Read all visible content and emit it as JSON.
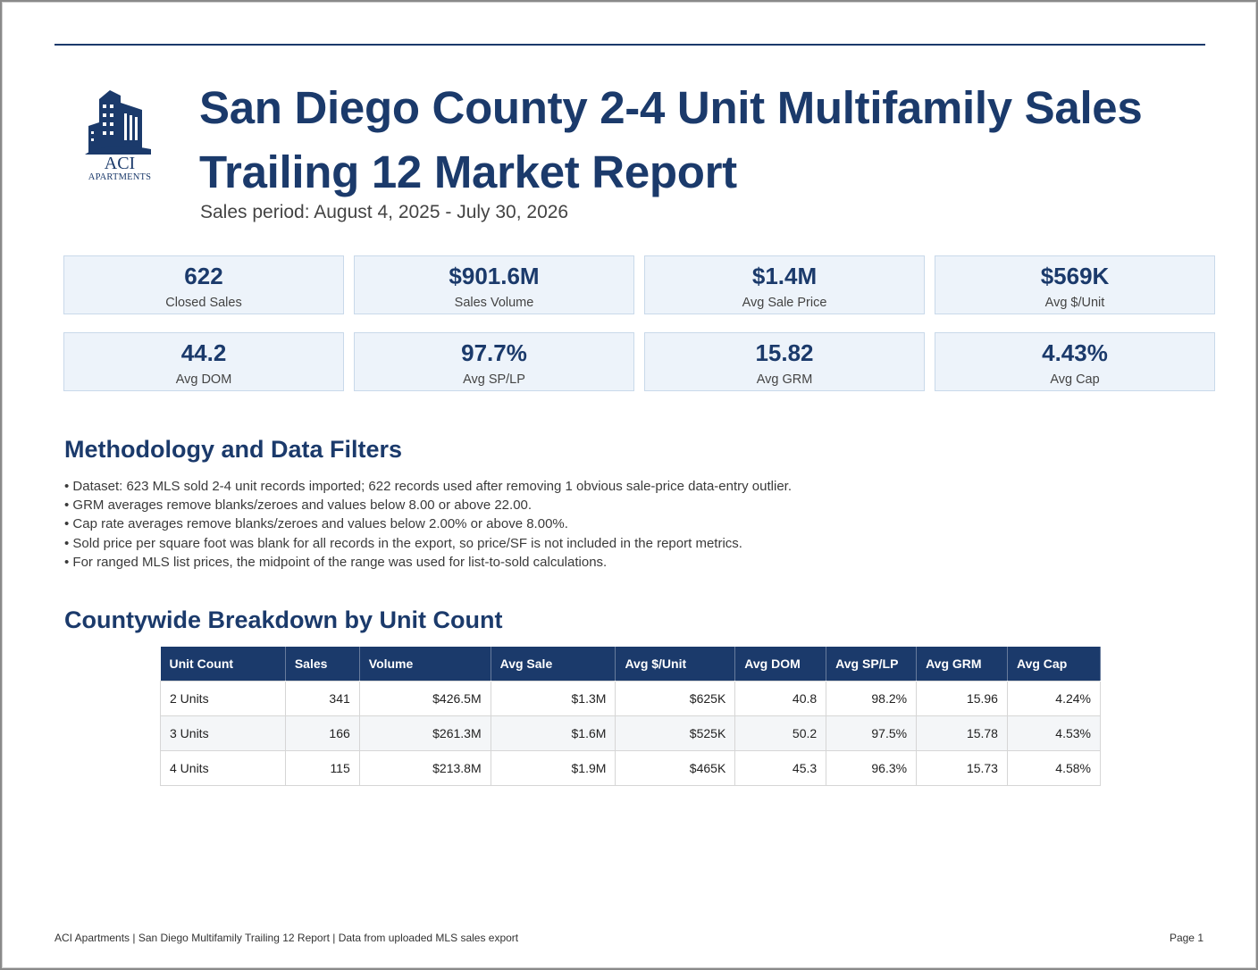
{
  "logo": {
    "word": "ACI",
    "sub": "APARTMENTS"
  },
  "header": {
    "title_line1": "San Diego County 2-4 Unit Multifamily Sales",
    "title_line2": "Trailing 12 Market Report",
    "subtitle": "Sales period: August 4, 2025 - July 30, 2026"
  },
  "kpis": [
    {
      "value": "622",
      "label": "Closed Sales"
    },
    {
      "value": "$901.6M",
      "label": "Sales Volume"
    },
    {
      "value": "$1.4M",
      "label": "Avg Sale Price"
    },
    {
      "value": "$569K",
      "label": "Avg $/Unit"
    },
    {
      "value": "44.2",
      "label": "Avg DOM"
    },
    {
      "value": "97.7%",
      "label": "Avg SP/LP"
    },
    {
      "value": "15.82",
      "label": "Avg GRM"
    },
    {
      "value": "4.43%",
      "label": "Avg Cap"
    }
  ],
  "methodology": {
    "heading": "Methodology and Data Filters",
    "bullets": [
      "Dataset: 623 MLS sold 2-4 unit records imported; 622 records used after removing 1 obvious sale-price data-entry outlier.",
      "GRM averages remove blanks/zeroes and values below 8.00 or above 22.00.",
      "Cap rate averages remove blanks/zeroes and values below 2.00% or above 8.00%.",
      "Sold price per square foot was blank for all records in the export, so price/SF is not included in the report metrics.",
      "For ranged MLS list prices, the midpoint of the range was used for list-to-sold calculations."
    ]
  },
  "breakdown": {
    "heading": "Countywide Breakdown by Unit Count",
    "columns": [
      "Unit Count",
      "Sales",
      "Volume",
      "Avg Sale",
      "Avg $/Unit",
      "Avg DOM",
      "Avg SP/LP",
      "Avg GRM",
      "Avg Cap"
    ],
    "rows": [
      [
        "2 Units",
        "341",
        "$426.5M",
        "$1.3M",
        "$625K",
        "40.8",
        "98.2%",
        "15.96",
        "4.24%"
      ],
      [
        "3 Units",
        "166",
        "$261.3M",
        "$1.6M",
        "$525K",
        "50.2",
        "97.5%",
        "15.78",
        "4.53%"
      ],
      [
        "4 Units",
        "115",
        "$213.8M",
        "$1.9M",
        "$465K",
        "45.3",
        "96.3%",
        "15.73",
        "4.58%"
      ]
    ]
  },
  "footer": {
    "text": "ACI Apartments | San Diego Multifamily Trailing 12 Report | Data from uploaded MLS sales export",
    "page": "Page 1"
  },
  "colors": {
    "brand": "#1b3a6b",
    "kpi_bg": "#edf3fa"
  }
}
